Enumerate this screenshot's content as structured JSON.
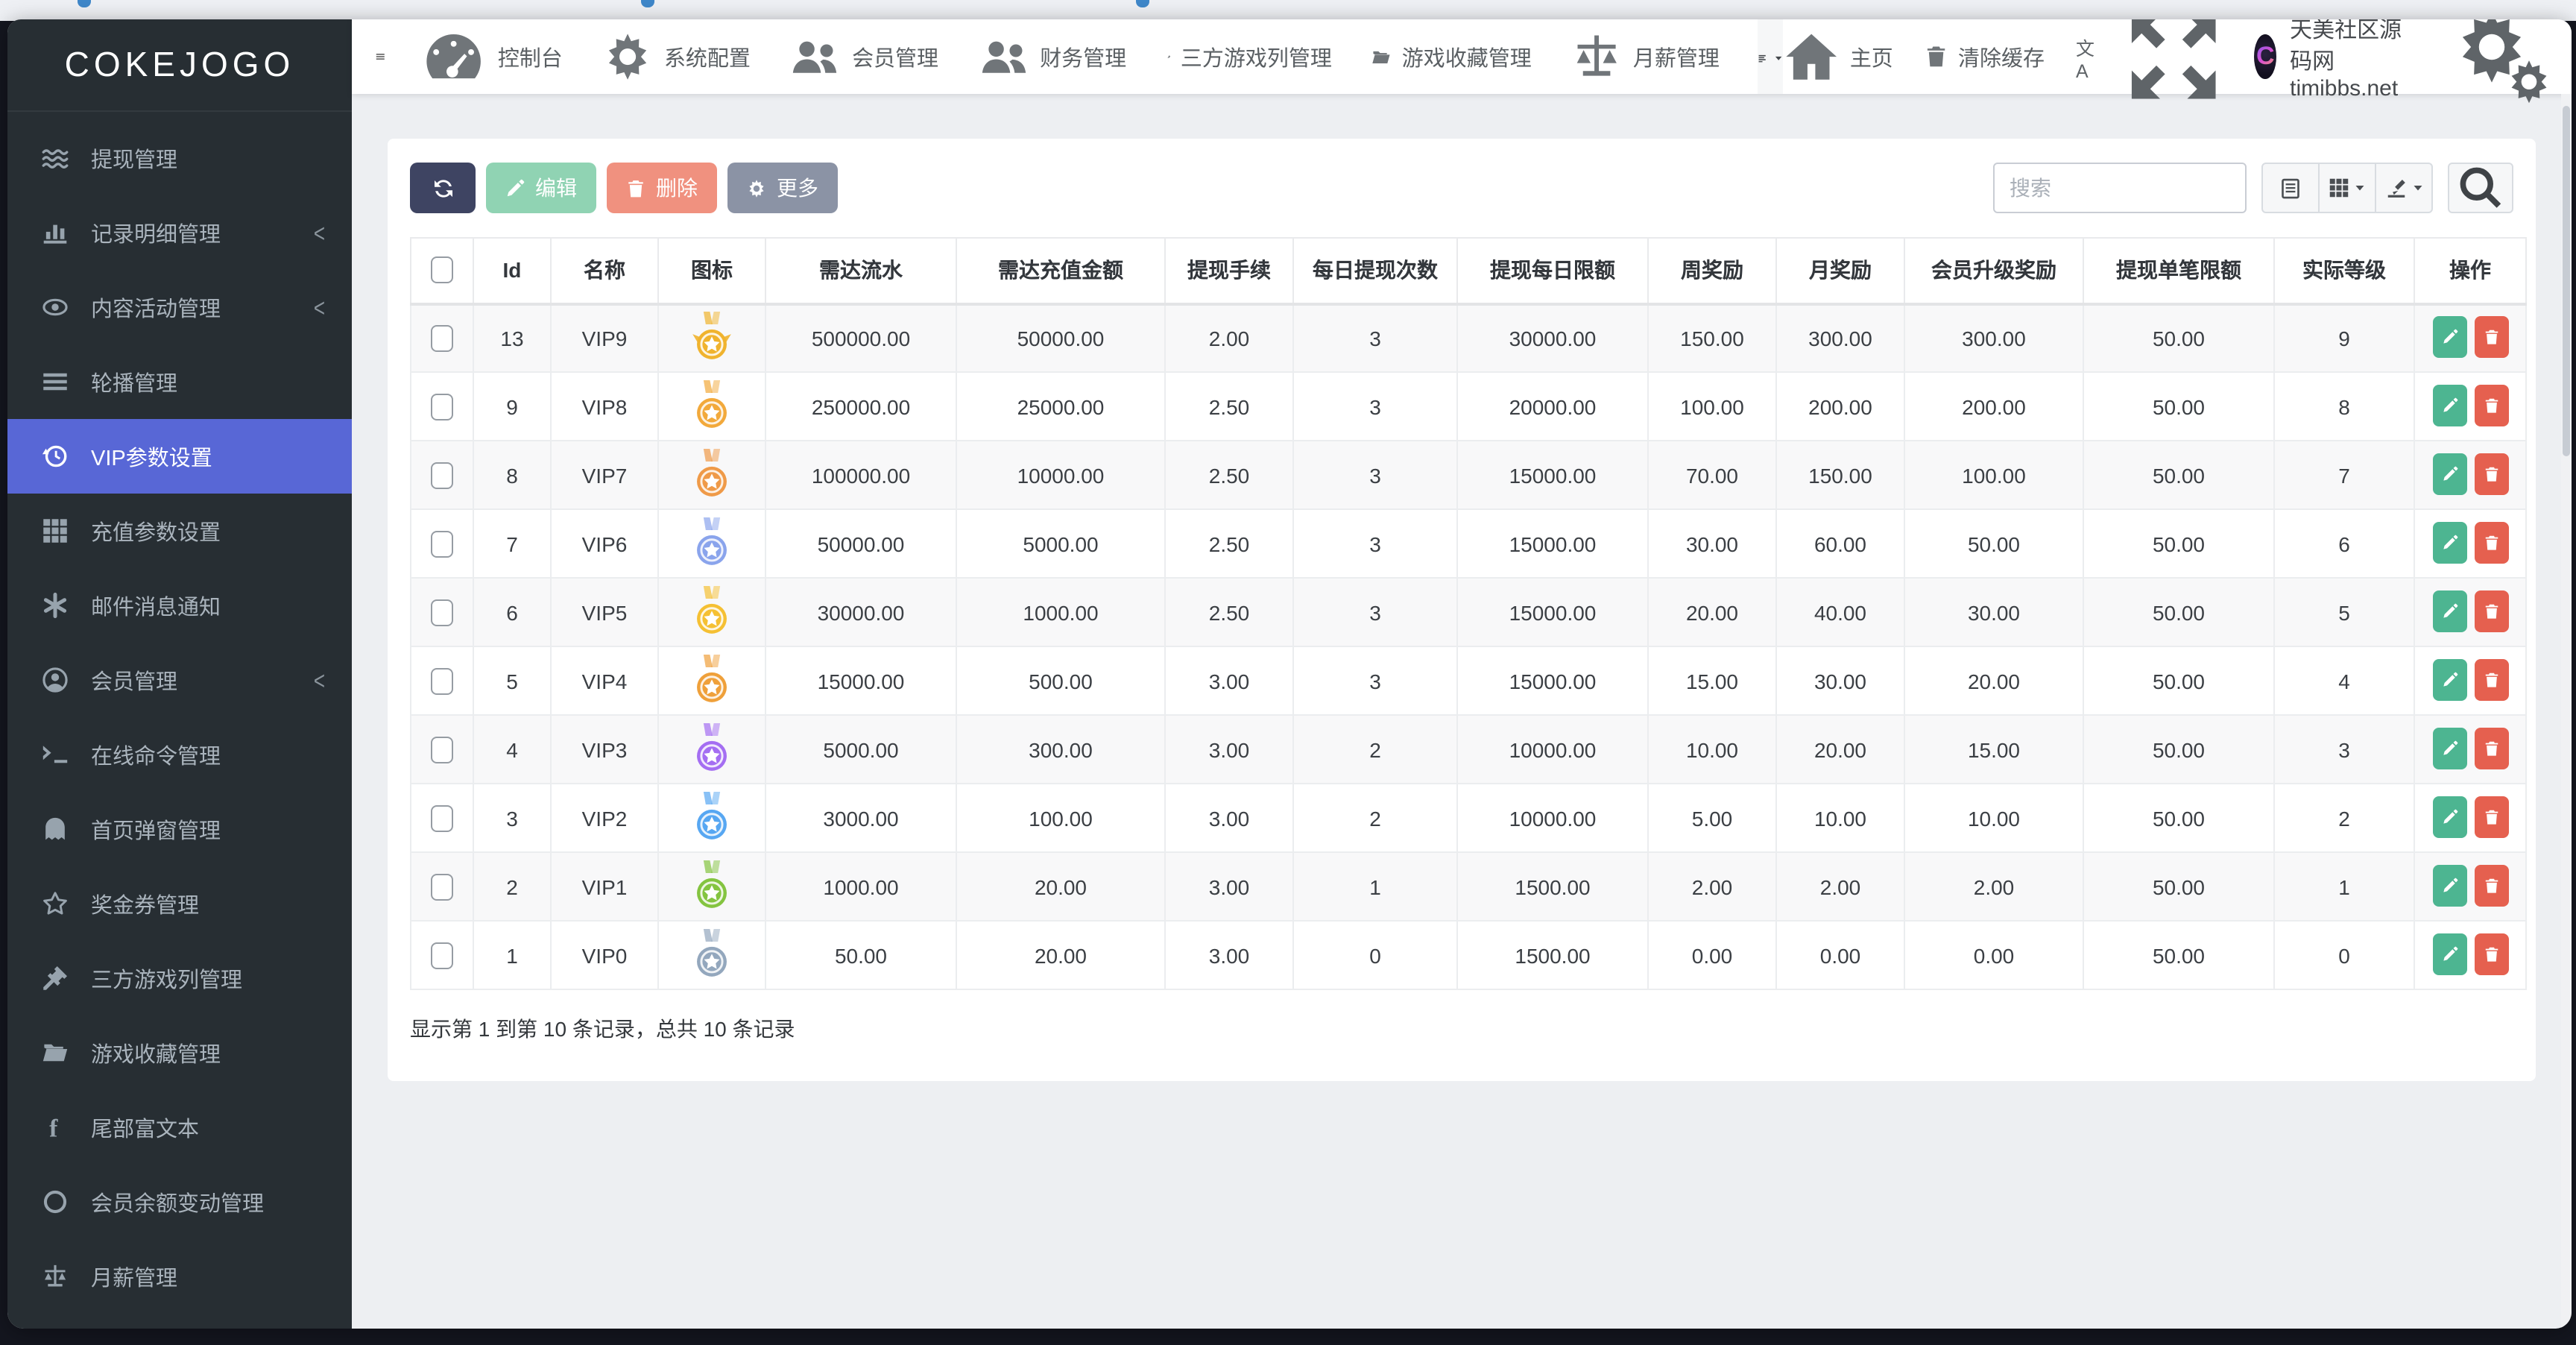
{
  "sidebar": {
    "logo": "COKEJOGO",
    "items": [
      {
        "label": "提现管理",
        "icon": "waves-icon",
        "active": false,
        "has_children": false
      },
      {
        "label": "记录明细管理",
        "icon": "chart-bar-icon",
        "active": false,
        "has_children": true
      },
      {
        "label": "内容活动管理",
        "icon": "eye-icon",
        "active": false,
        "has_children": true
      },
      {
        "label": "轮播管理",
        "icon": "bars-icon",
        "active": false,
        "has_children": false
      },
      {
        "label": "VIP参数设置",
        "icon": "history-icon",
        "active": true,
        "has_children": false
      },
      {
        "label": "充值参数设置",
        "icon": "grid-icon",
        "active": false,
        "has_children": false
      },
      {
        "label": "邮件消息通知",
        "icon": "asterisk-icon",
        "active": false,
        "has_children": false
      },
      {
        "label": "会员管理",
        "icon": "user-circle-icon",
        "active": false,
        "has_children": true
      },
      {
        "label": "在线命令管理",
        "icon": "terminal-icon",
        "active": false,
        "has_children": false
      },
      {
        "label": "首页弹窗管理",
        "icon": "ghost-icon",
        "active": false,
        "has_children": false
      },
      {
        "label": "奖金券管理",
        "icon": "star-icon",
        "active": false,
        "has_children": false
      },
      {
        "label": "三方游戏列管理",
        "icon": "gavel-icon",
        "active": false,
        "has_children": false
      },
      {
        "label": "游戏收藏管理",
        "icon": "folder-open-icon",
        "active": false,
        "has_children": false
      },
      {
        "label": "尾部富文本",
        "icon": "facebook-icon",
        "active": false,
        "has_children": false
      },
      {
        "label": "会员余额变动管理",
        "icon": "circle-icon",
        "active": false,
        "has_children": false
      },
      {
        "label": "月薪管理",
        "icon": "scale-icon",
        "active": false,
        "has_children": false
      }
    ]
  },
  "navbar": {
    "menu": [
      {
        "label": "控制台",
        "icon": "dashboard-icon"
      },
      {
        "label": "系统配置",
        "icon": "gear-icon"
      },
      {
        "label": "会员管理",
        "icon": "users-icon"
      },
      {
        "label": "财务管理",
        "icon": "users-icon"
      },
      {
        "label": "三方游戏列管理",
        "icon": "gavel-icon"
      },
      {
        "label": "游戏收藏管理",
        "icon": "folder-open-icon"
      },
      {
        "label": "月薪管理",
        "icon": "scale-icon"
      }
    ],
    "home_label": "主页",
    "clear_cache_label": "清除缓存",
    "translate_label": "文A",
    "username": "天美社区源码网timibbs.net",
    "avatar_letter": "C"
  },
  "toolbar": {
    "edit_label": "编辑",
    "delete_label": "删除",
    "more_label": "更多"
  },
  "search": {
    "placeholder": "搜索"
  },
  "table": {
    "columns": [
      "Id",
      "名称",
      "图标",
      "需达流水",
      "需达充值金额",
      "提现手续",
      "每日提现次数",
      "提现每日限额",
      "周奖励",
      "月奖励",
      "会员升级奖励",
      "提现单笔限额",
      "实际等级",
      "操作"
    ],
    "rows": [
      {
        "id": "13",
        "name": "VIP9",
        "icon": "medal-winged-icon",
        "icon_color": "#f0b32e",
        "turnover": "500000.00",
        "recharge": "50000.00",
        "fee": "2.00",
        "daily_times": "3",
        "daily_limit": "30000.00",
        "week_bonus": "150.00",
        "month_bonus": "300.00",
        "upgrade_bonus": "300.00",
        "single_limit": "50.00",
        "level": "9"
      },
      {
        "id": "9",
        "name": "VIP8",
        "icon": "medal-icon",
        "icon_color": "#f2a93b",
        "turnover": "250000.00",
        "recharge": "25000.00",
        "fee": "2.50",
        "daily_times": "3",
        "daily_limit": "20000.00",
        "week_bonus": "100.00",
        "month_bonus": "200.00",
        "upgrade_bonus": "200.00",
        "single_limit": "50.00",
        "level": "8"
      },
      {
        "id": "8",
        "name": "VIP7",
        "icon": "medal-icon",
        "icon_color": "#ef9a48",
        "turnover": "100000.00",
        "recharge": "10000.00",
        "fee": "2.50",
        "daily_times": "3",
        "daily_limit": "15000.00",
        "week_bonus": "70.00",
        "month_bonus": "150.00",
        "upgrade_bonus": "100.00",
        "single_limit": "50.00",
        "level": "7"
      },
      {
        "id": "7",
        "name": "VIP6",
        "icon": "medal-icon",
        "icon_color": "#8aa4ec",
        "turnover": "50000.00",
        "recharge": "5000.00",
        "fee": "2.50",
        "daily_times": "3",
        "daily_limit": "15000.00",
        "week_bonus": "30.00",
        "month_bonus": "60.00",
        "upgrade_bonus": "50.00",
        "single_limit": "50.00",
        "level": "6"
      },
      {
        "id": "6",
        "name": "VIP5",
        "icon": "medal-icon",
        "icon_color": "#f5c033",
        "turnover": "30000.00",
        "recharge": "1000.00",
        "fee": "2.50",
        "daily_times": "3",
        "daily_limit": "15000.00",
        "week_bonus": "20.00",
        "month_bonus": "40.00",
        "upgrade_bonus": "30.00",
        "single_limit": "50.00",
        "level": "5"
      },
      {
        "id": "5",
        "name": "VIP4",
        "icon": "medal-icon",
        "icon_color": "#efa03a",
        "turnover": "15000.00",
        "recharge": "500.00",
        "fee": "3.00",
        "daily_times": "3",
        "daily_limit": "15000.00",
        "week_bonus": "15.00",
        "month_bonus": "30.00",
        "upgrade_bonus": "20.00",
        "single_limit": "50.00",
        "level": "4"
      },
      {
        "id": "4",
        "name": "VIP3",
        "icon": "medal-icon",
        "icon_color": "#a46ef2",
        "turnover": "5000.00",
        "recharge": "300.00",
        "fee": "3.00",
        "daily_times": "2",
        "daily_limit": "10000.00",
        "week_bonus": "10.00",
        "month_bonus": "20.00",
        "upgrade_bonus": "15.00",
        "single_limit": "50.00",
        "level": "3"
      },
      {
        "id": "3",
        "name": "VIP2",
        "icon": "medal-icon",
        "icon_color": "#57a7f2",
        "turnover": "3000.00",
        "recharge": "100.00",
        "fee": "3.00",
        "daily_times": "2",
        "daily_limit": "10000.00",
        "week_bonus": "5.00",
        "month_bonus": "10.00",
        "upgrade_bonus": "10.00",
        "single_limit": "50.00",
        "level": "2"
      },
      {
        "id": "2",
        "name": "VIP1",
        "icon": "medal-icon",
        "icon_color": "#84c440",
        "turnover": "1000.00",
        "recharge": "20.00",
        "fee": "3.00",
        "daily_times": "1",
        "daily_limit": "1500.00",
        "week_bonus": "2.00",
        "month_bonus": "2.00",
        "upgrade_bonus": "2.00",
        "single_limit": "50.00",
        "level": "1"
      },
      {
        "id": "1",
        "name": "VIP0",
        "icon": "medal-icon",
        "icon_color": "#93a7bd",
        "turnover": "50.00",
        "recharge": "20.00",
        "fee": "3.00",
        "daily_times": "0",
        "daily_limit": "1500.00",
        "week_bonus": "0.00",
        "month_bonus": "0.00",
        "upgrade_bonus": "0.00",
        "single_limit": "50.00",
        "level": "0"
      }
    ]
  },
  "footer": {
    "summary": "显示第 1 到第 10 条记录，总共 10 条记录"
  }
}
